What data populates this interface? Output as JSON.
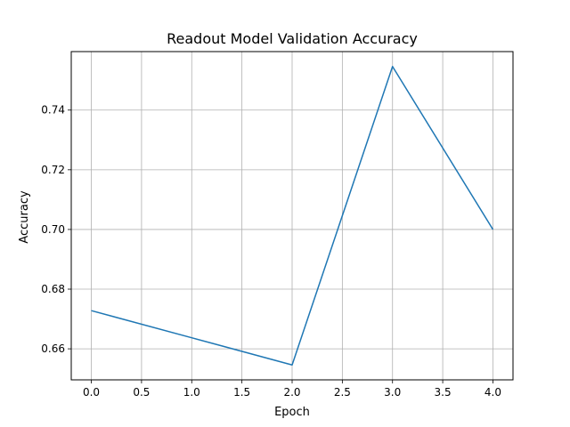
{
  "chart_data": {
    "type": "line",
    "title": "Readout Model Validation Accuracy",
    "xlabel": "Epoch",
    "ylabel": "Accuracy",
    "x": [
      0,
      1,
      2,
      3,
      4
    ],
    "series": [
      {
        "values": [
          0.6728,
          0.6637,
          0.6546,
          0.7546,
          0.7
        ]
      }
    ],
    "xlim": [
      -0.2,
      4.2
    ],
    "ylim": [
      0.6496,
      0.7596
    ],
    "xticks": [
      0.0,
      0.5,
      1.0,
      1.5,
      2.0,
      2.5,
      3.0,
      3.5,
      4.0
    ],
    "xtick_labels": [
      "0.0",
      "0.5",
      "1.0",
      "1.5",
      "2.0",
      "2.5",
      "3.0",
      "3.5",
      "4.0"
    ],
    "yticks": [
      0.66,
      0.68,
      0.7,
      0.72,
      0.74
    ],
    "ytick_labels": [
      "0.66",
      "0.68",
      "0.70",
      "0.72",
      "0.74"
    ],
    "grid": true,
    "colors": {
      "line": "#1f77b4",
      "grid": "#b0b0b0",
      "axis": "#000000"
    }
  }
}
